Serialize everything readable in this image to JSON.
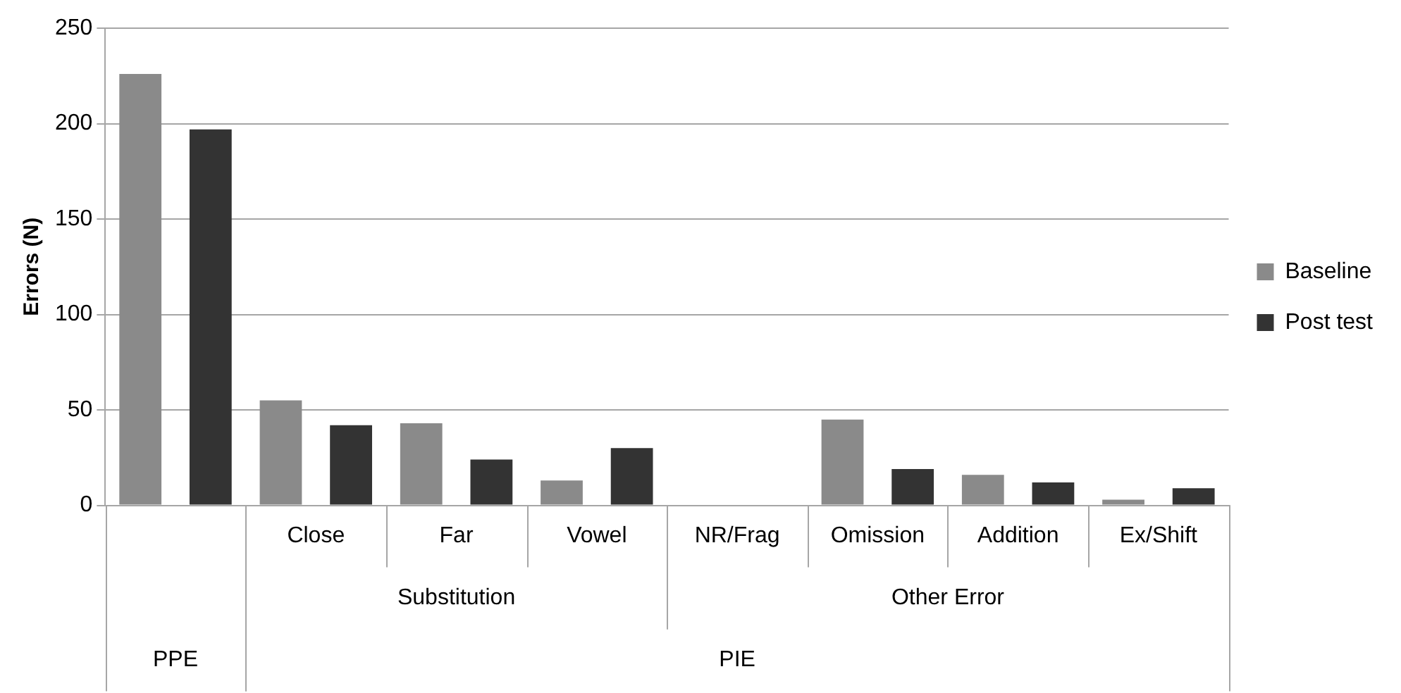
{
  "chart_data": {
    "type": "bar",
    "ylabel": "Errors (N)",
    "categories": [
      null,
      "Close",
      "Far",
      "Vowel",
      "NR/Frag",
      "Omission",
      "Addition",
      "Ex/Shift"
    ],
    "series": [
      {
        "name": "Baseline",
        "color": "#8a8a8a",
        "values": [
          226,
          55,
          43,
          13,
          0,
          45,
          16,
          3
        ]
      },
      {
        "name": "Post test",
        "color": "#333333",
        "values": [
          197,
          42,
          24,
          30,
          0,
          19,
          12,
          9
        ]
      }
    ],
    "annotations": [
      "Substitution",
      "Other Error",
      "PPE",
      "PIE"
    ],
    "ylim": [
      0,
      250
    ],
    "yticks": [
      0,
      50,
      100,
      150,
      200,
      250
    ],
    "grid": "y",
    "legend": "right"
  }
}
